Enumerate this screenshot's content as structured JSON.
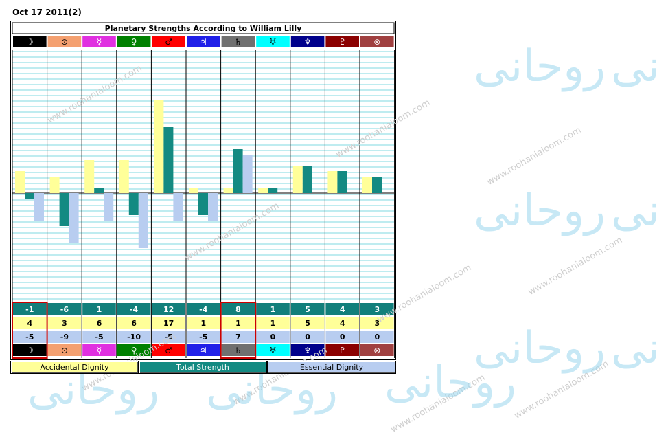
{
  "header": {
    "date": "Oct 17 2011(2)"
  },
  "watermark": {
    "url": "www.roohanialoom.com",
    "glyph": "روحانی"
  },
  "colors": {
    "accidental": "#ffff99",
    "total": "#138a82",
    "essential": "#b8cdf0",
    "gridline": "#7fd9e0",
    "row_total_bg": "#127f7b",
    "row_acc_bg": "#ffff99",
    "row_ess_bg": "#b8cdf0"
  },
  "chart_data": {
    "type": "bar",
    "title": "Planetary Strengths According to William Lilly",
    "ylim": [
      -20,
      20
    ],
    "planets": [
      {
        "symbol": "☽",
        "bg": "#000000",
        "fg": "#ffffff"
      },
      {
        "symbol": "⊙",
        "bg": "#f4a070",
        "fg": "#000000"
      },
      {
        "symbol": "☿",
        "bg": "#e030e0",
        "fg": "#ffffff"
      },
      {
        "symbol": "♀",
        "bg": "#008000",
        "fg": "#ffffff"
      },
      {
        "symbol": "♂",
        "bg": "#ff0000",
        "fg": "#000000"
      },
      {
        "symbol": "♃",
        "bg": "#2020e8",
        "fg": "#ffffff"
      },
      {
        "symbol": "♄",
        "bg": "#707070",
        "fg": "#000000"
      },
      {
        "symbol": "♅",
        "bg": "#00ffff",
        "fg": "#000000"
      },
      {
        "symbol": "♆",
        "bg": "#00008b",
        "fg": "#ffffff"
      },
      {
        "symbol": "♇",
        "bg": "#8b0000",
        "fg": "#ffffff"
      },
      {
        "symbol": "⊗",
        "bg": "#a04040",
        "fg": "#ffffff"
      }
    ],
    "series": [
      {
        "name": "Accidental Dignity",
        "values": [
          4,
          3,
          6,
          6,
          17,
          1,
          1,
          1,
          5,
          4,
          3
        ]
      },
      {
        "name": "Total Strength",
        "values": [
          -1,
          -6,
          1,
          -4,
          12,
          -4,
          8,
          1,
          5,
          4,
          3
        ]
      },
      {
        "name": "Essential Dignity",
        "values": [
          -5,
          -9,
          -5,
          -10,
          -5,
          -5,
          7,
          0,
          0,
          0,
          0
        ]
      }
    ],
    "row_labels": {
      "total": [
        "-1",
        "-6",
        "1",
        "-4",
        "12",
        "-4",
        "8",
        "1",
        "5",
        "4",
        "3"
      ],
      "accidental": [
        "4",
        "3",
        "6",
        "6",
        "17",
        "1",
        "1",
        "1",
        "5",
        "4",
        "3"
      ],
      "essential": [
        "-5",
        "-9",
        "-5",
        "-10",
        "-5",
        "-5",
        "7",
        "0",
        "0",
        "0",
        "0"
      ]
    },
    "highlighted_columns": [
      0,
      6
    ],
    "legend": [
      "Accidental Dignity",
      "Total Strength",
      "Essential Dignity"
    ],
    "grid": true
  }
}
